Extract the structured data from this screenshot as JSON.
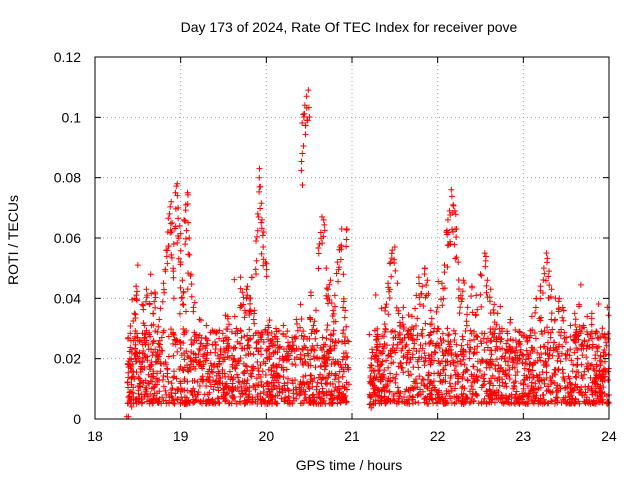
{
  "chart_data": {
    "type": "scatter",
    "title": "Day 173 of 2024, Rate Of TEC Index for receiver pove",
    "xlabel": "GPS time / hours",
    "ylabel": "ROTI / TECUs",
    "xlim": [
      18,
      24
    ],
    "ylim": [
      0,
      0.12
    ],
    "xticks": [
      18,
      19,
      20,
      21,
      22,
      23,
      24
    ],
    "xtick_labels": [
      "18",
      "19",
      "20",
      "21",
      "22",
      "23",
      "24"
    ],
    "yticks": [
      0,
      0.02,
      0.04,
      0.06,
      0.08,
      0.1,
      0.12
    ],
    "ytick_labels": [
      "0",
      "0.02",
      "0.04",
      "0.06",
      "0.08",
      "0.1",
      "0.12"
    ],
    "grid": true,
    "marker": "+",
    "series": [
      {
        "name": "ROTI",
        "color": "#ff0000",
        "points": [
          [
            18.38,
            0.012
          ],
          [
            18.4,
            0.018
          ],
          [
            18.42,
            0.026
          ],
          [
            18.44,
            0.014
          ],
          [
            18.46,
            0.035
          ],
          [
            18.48,
            0.044
          ],
          [
            18.5,
            0.051
          ],
          [
            18.52,
            0.022
          ],
          [
            18.55,
            0.038
          ],
          [
            18.58,
            0.031
          ],
          [
            18.6,
            0.043
          ],
          [
            18.63,
            0.028
          ],
          [
            18.65,
            0.048
          ],
          [
            18.68,
            0.035
          ],
          [
            18.7,
            0.042
          ],
          [
            18.72,
            0.019
          ],
          [
            18.75,
            0.033
          ],
          [
            18.78,
            0.027
          ],
          [
            18.8,
            0.045
          ],
          [
            18.83,
            0.056
          ],
          [
            18.85,
            0.062
          ],
          [
            18.87,
            0.068
          ],
          [
            18.89,
            0.072
          ],
          [
            18.9,
            0.065
          ],
          [
            18.92,
            0.058
          ],
          [
            18.94,
            0.075
          ],
          [
            18.96,
            0.078
          ],
          [
            18.97,
            0.07
          ],
          [
            18.99,
            0.064
          ],
          [
            19.0,
            0.052
          ],
          [
            19.02,
            0.046
          ],
          [
            19.04,
            0.066
          ],
          [
            19.06,
            0.071
          ],
          [
            19.08,
            0.075
          ],
          [
            19.1,
            0.06
          ],
          [
            19.12,
            0.048
          ],
          [
            19.15,
            0.037
          ],
          [
            19.18,
            0.028
          ],
          [
            19.22,
            0.033
          ],
          [
            19.26,
            0.024
          ],
          [
            19.3,
            0.031
          ],
          [
            19.35,
            0.022
          ],
          [
            19.4,
            0.029
          ],
          [
            19.45,
            0.018
          ],
          [
            19.5,
            0.026
          ],
          [
            19.55,
            0.034
          ],
          [
            19.6,
            0.021
          ],
          [
            19.65,
            0.03
          ],
          [
            19.7,
            0.047
          ],
          [
            19.72,
            0.042
          ],
          [
            19.75,
            0.036
          ],
          [
            19.78,
            0.044
          ],
          [
            19.8,
            0.04
          ],
          [
            19.83,
            0.047
          ],
          [
            19.86,
            0.036
          ],
          [
            19.88,
            0.059
          ],
          [
            19.9,
            0.068
          ],
          [
            19.92,
            0.083
          ],
          [
            19.93,
            0.077
          ],
          [
            19.95,
            0.066
          ],
          [
            19.97,
            0.062
          ],
          [
            19.99,
            0.052
          ],
          [
            20.02,
            0.031
          ],
          [
            20.05,
            0.026
          ],
          [
            20.08,
            0.022
          ],
          [
            20.12,
            0.029
          ],
          [
            20.16,
            0.024
          ],
          [
            20.2,
            0.031
          ],
          [
            20.25,
            0.021
          ],
          [
            20.3,
            0.027
          ],
          [
            20.35,
            0.033
          ],
          [
            20.4,
            0.038
          ],
          [
            20.42,
            0.088
          ],
          [
            20.43,
            0.101
          ],
          [
            20.45,
            0.104
          ],
          [
            20.47,
            0.107
          ],
          [
            20.49,
            0.109
          ],
          [
            20.52,
            0.042
          ],
          [
            20.55,
            0.031
          ],
          [
            20.58,
            0.029
          ],
          [
            20.62,
            0.058
          ],
          [
            20.65,
            0.067
          ],
          [
            20.67,
            0.066
          ],
          [
            20.7,
            0.05
          ],
          [
            20.72,
            0.043
          ],
          [
            20.75,
            0.046
          ],
          [
            20.78,
            0.036
          ],
          [
            20.8,
            0.041
          ],
          [
            20.83,
            0.052
          ],
          [
            20.86,
            0.057
          ],
          [
            20.88,
            0.063
          ],
          [
            20.9,
            0.048
          ],
          [
            20.92,
            0.036
          ],
          [
            20.94,
            0.063
          ],
          [
            21.22,
            0.012
          ],
          [
            21.25,
            0.016
          ],
          [
            21.28,
            0.021
          ],
          [
            21.3,
            0.028
          ],
          [
            21.33,
            0.018
          ],
          [
            21.36,
            0.024
          ],
          [
            21.39,
            0.037
          ],
          [
            21.42,
            0.045
          ],
          [
            21.45,
            0.052
          ],
          [
            21.47,
            0.056
          ],
          [
            21.5,
            0.057
          ],
          [
            21.53,
            0.045
          ],
          [
            21.56,
            0.032
          ],
          [
            21.6,
            0.037
          ],
          [
            21.65,
            0.022
          ],
          [
            21.7,
            0.034
          ],
          [
            21.75,
            0.041
          ],
          [
            21.78,
            0.047
          ],
          [
            21.82,
            0.044
          ],
          [
            21.85,
            0.05
          ],
          [
            21.88,
            0.046
          ],
          [
            21.92,
            0.036
          ],
          [
            21.96,
            0.03
          ],
          [
            22.0,
            0.037
          ],
          [
            22.05,
            0.045
          ],
          [
            22.08,
            0.051
          ],
          [
            22.1,
            0.062
          ],
          [
            22.12,
            0.066
          ],
          [
            22.14,
            0.069
          ],
          [
            22.16,
            0.076
          ],
          [
            22.18,
            0.071
          ],
          [
            22.2,
            0.069
          ],
          [
            22.22,
            0.063
          ],
          [
            22.24,
            0.052
          ],
          [
            22.27,
            0.041
          ],
          [
            22.3,
            0.046
          ],
          [
            22.35,
            0.037
          ],
          [
            22.4,
            0.044
          ],
          [
            22.45,
            0.041
          ],
          [
            22.5,
            0.048
          ],
          [
            22.55,
            0.055
          ],
          [
            22.58,
            0.046
          ],
          [
            22.62,
            0.043
          ],
          [
            22.66,
            0.038
          ],
          [
            22.7,
            0.035
          ],
          [
            22.75,
            0.03
          ],
          [
            22.8,
            0.025
          ],
          [
            22.85,
            0.033
          ],
          [
            22.9,
            0.022
          ],
          [
            22.95,
            0.029
          ],
          [
            23.0,
            0.021
          ],
          [
            23.05,
            0.026
          ],
          [
            23.1,
            0.034
          ],
          [
            23.15,
            0.04
          ],
          [
            23.2,
            0.044
          ],
          [
            23.24,
            0.05
          ],
          [
            23.27,
            0.055
          ],
          [
            23.3,
            0.049
          ],
          [
            23.33,
            0.043
          ],
          [
            23.37,
            0.033
          ],
          [
            23.42,
            0.04
          ],
          [
            23.46,
            0.037
          ],
          [
            23.5,
            0.027
          ],
          [
            23.55,
            0.031
          ],
          [
            23.6,
            0.035
          ],
          [
            23.65,
            0.038
          ],
          [
            23.7,
            0.031
          ],
          [
            23.75,
            0.028
          ],
          [
            23.8,
            0.035
          ],
          [
            23.85,
            0.024
          ],
          [
            23.9,
            0.021
          ],
          [
            23.95,
            0.028
          ],
          [
            23.98,
            0.037
          ]
        ],
        "dense_band": {
          "segments": [
            [
              18.38,
              20.97
            ],
            [
              21.2,
              24.0
            ]
          ],
          "typical_range": [
            0.005,
            0.03
          ],
          "median": 0.014
        }
      }
    ]
  }
}
